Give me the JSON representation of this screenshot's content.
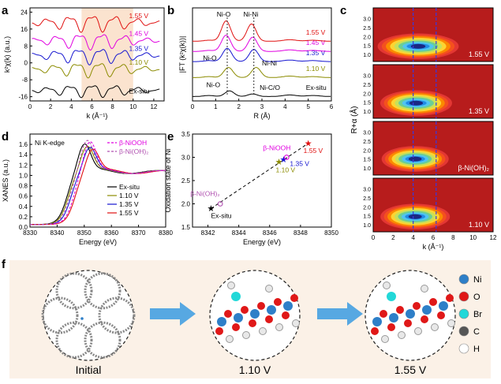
{
  "panel_labels": {
    "a": "a",
    "b": "b",
    "c": "c",
    "d": "d",
    "e": "e",
    "f": "f"
  },
  "colors": {
    "exsitu": "#000000",
    "v110": "#8B8B00",
    "v135": "#1515D0",
    "v145": "#E000E0",
    "v155": "#E01010",
    "shade": "#FBE3CF",
    "arrow": "#3A9BE0",
    "dash": "#3838E0"
  },
  "chart_data": [
    {
      "id": "a",
      "type": "line",
      "ylabel": "k²χ(k) (a.u.)",
      "xlabel": "k (Å⁻¹)",
      "xlim": [
        0,
        13
      ],
      "ylim": [
        -18,
        26
      ],
      "xticks": [
        0,
        2,
        4,
        6,
        8,
        10,
        12
      ],
      "yticks": [
        -16,
        -8,
        0,
        8,
        16,
        24
      ],
      "shaded_region": [
        5,
        10
      ],
      "series": [
        {
          "name": "Ex-situ",
          "label": "Ex-situ",
          "offset": -13,
          "amp": 1.2,
          "color": "#000000"
        },
        {
          "name": "1.10 V",
          "label": "1.10 V",
          "offset": -3,
          "amp": 1.4,
          "color": "#8B8B00"
        },
        {
          "name": "1.35 V",
          "label": "1.35 V",
          "offset": 3.5,
          "amp": 1.5,
          "color": "#1515D0"
        },
        {
          "name": "1.45 V",
          "label": "1.45 V",
          "offset": 10.5,
          "amp": 1.5,
          "color": "#E000E0"
        },
        {
          "name": "1.55 V",
          "label": "1.55 V",
          "offset": 19,
          "amp": 1.6,
          "color": "#E01010"
        }
      ]
    },
    {
      "id": "b",
      "type": "line",
      "ylabel": "|FT (k²χ(k))|",
      "xlabel": "R (Å)",
      "xlim": [
        0,
        6
      ],
      "xticks": [
        0,
        1,
        2,
        3,
        4,
        5,
        6
      ],
      "annotations": [
        "Ni-O",
        "Ni-Ni",
        "Ni-O",
        "Ni-Ni",
        "Ni-O",
        "Ni-C/O"
      ],
      "series": [
        {
          "name": "Ex-situ",
          "label": "Ex-situ",
          "offset": 0,
          "peaks": [
            [
              1.6,
              0.55
            ],
            [
              2.6,
              0.25
            ]
          ],
          "color": "#000000"
        },
        {
          "name": "1.10 V",
          "label": "1.10 V",
          "offset": 1.3,
          "peaks": [
            [
              1.55,
              1.0
            ],
            [
              2.75,
              1.0
            ]
          ],
          "color": "#8B8B00"
        },
        {
          "name": "1.35 V",
          "label": "1.35 V",
          "offset": 2.4,
          "peaks": [
            [
              1.5,
              1.3
            ],
            [
              2.65,
              1.2
            ]
          ],
          "color": "#1515D0"
        },
        {
          "name": "1.45 V",
          "label": "1.45 V",
          "offset": 3.1,
          "peaks": [
            [
              1.45,
              1.6
            ],
            [
              2.6,
              1.4
            ]
          ],
          "color": "#E000E0"
        },
        {
          "name": "1.55 V",
          "label": "1.55 V",
          "offset": 3.8,
          "peaks": [
            [
              1.45,
              2.0
            ],
            [
              2.55,
              1.7
            ]
          ],
          "color": "#E01010"
        }
      ]
    },
    {
      "id": "c",
      "type": "heatmap",
      "ylabel": "R+α (Å)",
      "xlabel": "k (Å⁻¹)",
      "xlim": [
        0,
        12
      ],
      "ylim": [
        0.6,
        3.6
      ],
      "xticks": [
        0,
        2,
        4,
        6,
        8,
        10,
        12
      ],
      "yticks": [
        1.0,
        1.5,
        2.0,
        2.5,
        3.0
      ],
      "guide_lines_k": [
        4,
        6.3
      ],
      "maps": [
        {
          "label": "1.55 V",
          "cx": 4.2,
          "cy": 1.45,
          "spread": 1.6
        },
        {
          "label": "1.35 V",
          "cx": 4.0,
          "cy": 1.45,
          "spread": 1.4
        },
        {
          "label": "β-Ni(OH)₂",
          "cx": 3.9,
          "cy": 1.5,
          "spread": 1.3
        },
        {
          "label": "1.10 V",
          "cx": 3.9,
          "cy": 1.45,
          "spread": 1.35
        }
      ]
    },
    {
      "id": "d",
      "type": "line",
      "title": "Ni K-edge",
      "ylabel": "XANES (a.u.)",
      "xlabel": "Energy (eV)",
      "xlim": [
        8330,
        8380
      ],
      "ylim": [
        0,
        1.8
      ],
      "xticks": [
        8330,
        8340,
        8350,
        8360,
        8370,
        8380
      ],
      "yticks": [
        0.0,
        0.2,
        0.4,
        0.6,
        0.8,
        1.0,
        1.2,
        1.4,
        1.6
      ],
      "legend_dashed": [
        "β-NiOOH",
        "β-Ni(OH)₂"
      ],
      "series": [
        {
          "name": "Ex-situ",
          "label": "Ex-situ",
          "edge": 8343.5,
          "peak": 8350,
          "height": 1.55,
          "color": "#000000"
        },
        {
          "name": "1.10 V",
          "label": "1.10 V",
          "edge": 8344.0,
          "peak": 8351,
          "height": 1.5,
          "color": "#8B8B00"
        },
        {
          "name": "1.35 V",
          "label": "1.35 V",
          "edge": 8345.0,
          "peak": 8352,
          "height": 1.48,
          "color": "#1515D0"
        },
        {
          "name": "1.55 V",
          "label": "1.55 V",
          "edge": 8346.5,
          "peak": 8353,
          "height": 1.45,
          "color": "#E01010"
        },
        {
          "name": "β-NiOOH",
          "label": "β-NiOOH",
          "edge": 8346.0,
          "peak": 8352,
          "height": 1.6,
          "color": "#E000E0",
          "dashed": true
        },
        {
          "name": "β-Ni(OH)₂",
          "label": "β-Ni(OH)₂",
          "edge": 8344.5,
          "peak": 8351,
          "height": 1.62,
          "color": "#B050B0",
          "dashed": true
        }
      ]
    },
    {
      "id": "e",
      "type": "scatter",
      "ylabel": "Oxidation state of Ni",
      "xlabel": "Energy (eV)",
      "xlim": [
        8341,
        8350
      ],
      "ylim": [
        1.5,
        3.5
      ],
      "xticks": [
        8342,
        8344,
        8346,
        8348,
        8350
      ],
      "yticks": [
        1.5,
        2.0,
        2.5,
        3.0,
        3.5
      ],
      "points": [
        {
          "label": "Ex-situ",
          "x": 8342.2,
          "y": 1.9,
          "color": "#000000"
        },
        {
          "label": "β-Ni(OH)₂",
          "x": 8342.8,
          "y": 2.0,
          "color": "#B050B0"
        },
        {
          "label": "1.10 V",
          "x": 8346.6,
          "y": 2.9,
          "color": "#8B8B00"
        },
        {
          "label": "1.35 V",
          "x": 8346.9,
          "y": 2.95,
          "color": "#1515D0"
        },
        {
          "label": "β-NiOOH",
          "x": 8347.1,
          "y": 3.0,
          "color": "#E000E0"
        },
        {
          "label": "1.55 V",
          "x": 8348.5,
          "y": 3.3,
          "color": "#E01010"
        }
      ],
      "fit": [
        [
          8342.2,
          1.9
        ],
        [
          8348.5,
          3.3
        ]
      ]
    }
  ],
  "scheme": {
    "stages": [
      "Initial",
      "1.10 V",
      "1.55 V"
    ],
    "legend": [
      {
        "label": "Ni",
        "color": "#2E7FC8"
      },
      {
        "label": "O",
        "color": "#E01818"
      },
      {
        "label": "Br",
        "color": "#22D8D8"
      },
      {
        "label": "C",
        "color": "#555555"
      },
      {
        "label": "H",
        "color": "#FFFFFF"
      }
    ]
  }
}
